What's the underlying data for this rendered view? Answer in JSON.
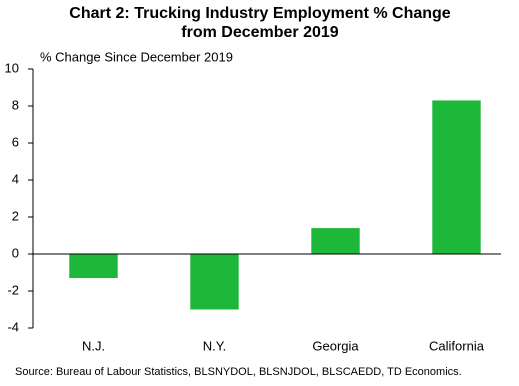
{
  "chart_data": {
    "type": "bar",
    "title": "Chart 2: Trucking Industry Employment % Change from December 2019",
    "y_axis_label": "% Change Since December 2019",
    "source": "Source: Bureau of Labour Statistics, BLSNYDOL, BLSNJDOL, BLSCAEDD, TD Economics.",
    "categories": [
      "N.J.",
      "N.Y.",
      "Georgia",
      "California"
    ],
    "values": [
      -1.3,
      -3.0,
      1.4,
      8.3
    ],
    "color": "#1db73a",
    "ylim": [
      -4,
      10
    ],
    "yticks": [
      -4,
      -2,
      0,
      2,
      4,
      6,
      8,
      10
    ],
    "grid": false
  }
}
